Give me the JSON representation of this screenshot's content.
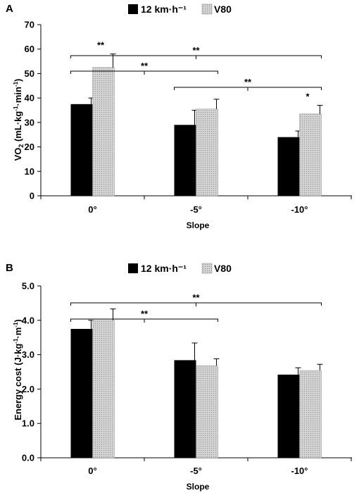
{
  "chart_data": [
    {
      "type": "bar",
      "panel": "A",
      "categories": [
        "0°",
        "-5°",
        "-10°"
      ],
      "series": [
        {
          "name": "12 km·h⁻¹",
          "values": [
            37.5,
            29,
            24
          ],
          "errors": [
            2.5,
            6,
            2.5
          ],
          "color": "#000000"
        },
        {
          "name": "V80",
          "values": [
            52.5,
            35.5,
            33.5
          ],
          "errors": [
            5.5,
            4,
            3.5
          ],
          "color": "#c8c8c8"
        }
      ],
      "xlabel": "Slope",
      "ylabel": "VO2 (mL·kg-1·min-1)",
      "ylim": [
        0,
        70
      ],
      "yticks": [
        "0",
        "10",
        "20",
        "30",
        "40",
        "50",
        "60",
        "70"
      ],
      "grid": false,
      "legend": "top-center",
      "annotations": [
        {
          "label": "**",
          "type": "over-bar",
          "category": "0°",
          "series": "V80"
        },
        {
          "label": "*",
          "type": "over-bar",
          "category": "-10°",
          "series": "V80"
        },
        {
          "label": "**",
          "type": "bracket",
          "from": "0°",
          "to": "-10°"
        },
        {
          "label": "**",
          "type": "bracket",
          "from": "0°",
          "to": "-5°"
        },
        {
          "label": "**",
          "type": "bracket",
          "from": "-5°",
          "to": "-10°"
        }
      ]
    },
    {
      "type": "bar",
      "panel": "B",
      "categories": [
        "0°",
        "-5°",
        "-10°"
      ],
      "series": [
        {
          "name": "12 km·h⁻¹",
          "values": [
            3.75,
            2.84,
            2.42
          ],
          "errors": [
            0.25,
            0.5,
            0.2
          ],
          "color": "#000000"
        },
        {
          "name": "V80",
          "values": [
            4.0,
            2.68,
            2.54
          ],
          "errors": [
            0.33,
            0.2,
            0.18
          ],
          "color": "#c8c8c8"
        }
      ],
      "xlabel": "Slope",
      "ylabel": "Energy cost (J·kg-1·m-1)",
      "ylim": [
        0,
        5
      ],
      "yticks": [
        "0.0",
        "1.0",
        "2.0",
        "3.0",
        "4.0",
        "5.0"
      ],
      "grid": false,
      "legend": "top-center",
      "annotations": [
        {
          "label": "**",
          "type": "bracket",
          "from": "0°",
          "to": "-10°"
        },
        {
          "label": "**",
          "type": "bracket",
          "from": "0°",
          "to": "-5°"
        }
      ]
    }
  ]
}
